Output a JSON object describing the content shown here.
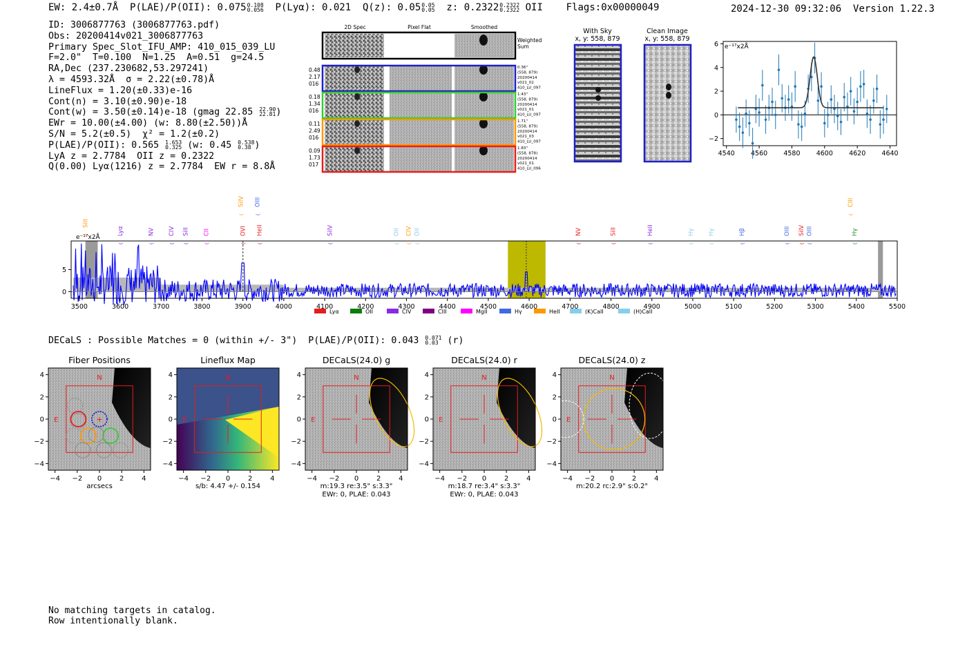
{
  "header": {
    "ew_text": "EW: 2.4±0.7Å",
    "plae_text": "P(LAE)/P(OII): 0.075",
    "plae_hi": "0.108",
    "plae_lo": "0.056",
    "plya_text": "P(Lyα): 0.021",
    "qz_text": "Q(z): 0.05",
    "qz_hi": "0.05",
    "qz_lo": "0.05",
    "z_text": "z: 0.2322",
    "z_hi": "0.2322",
    "z_lo": "0.2322",
    "z_line": "OII",
    "flags": "Flags:0x00000049",
    "datetime": "2024-12-30 09:32:06",
    "version": "Version 1.22.3"
  },
  "info": {
    "id": "ID: 3006877763 (3006877763.pdf)",
    "obs": "Obs: 20200414v021_3006877763",
    "primary": "Primary Spec_Slot_IFU_AMP: 410_015_039_LU",
    "fparams": "F=2.0\"  T=0.100  N=1.25  A=0.51  g=24.5",
    "radec": "RA,Dec (237.230682,53.297241)",
    "lambda": "λ = 4593.32Å  σ = 2.22(±0.78)Å",
    "lineflux": "LineFlux = 1.20(±0.33)e-16",
    "contn": "Cont(n) = 3.10(±0.90)e-18",
    "contw": "Cont(w) = 3.50(±0.14)e-18 (gmag 22.85",
    "gmag_hi": "22.90",
    "gmag_lo": "22.81",
    "contw_close": ")",
    "ewr": "EWr = 10.00(±4.00) (w: 8.80(±2.50))Å",
    "sn": "S/N = 5.2(±0.5)  χ² = 1.2(±0.2)",
    "plae": "P(LAE)/P(OII): 0.565",
    "plae_hi": "1.653",
    "plae_lo": "0.325",
    "plae_w": "(w: 0.45",
    "plae_w_hi": "0.538",
    "plae_w_lo": "0.38",
    "plae_w_close": ")",
    "lya_z": "LyA z = 2.7784  OII z = 0.2322",
    "q_line": "Q(0.00) Lyα(1216) z = 2.7784  EW r = 8.8Å"
  },
  "cutouts": {
    "col_titles": [
      "2D Spec",
      "Pixel Flat",
      "Smoothed"
    ],
    "weighted_label": [
      "Weighted",
      "Sum"
    ],
    "rows": [
      {
        "left": [
          "0.48",
          "2.17",
          "016"
        ],
        "right": [
          "0.36\"",
          "(558, 879)",
          "20200414",
          "v021_02",
          "410_LU_097"
        ],
        "color": "#1f1fc8"
      },
      {
        "left": [
          "0.18",
          "1.34",
          "016"
        ],
        "right": [
          "1.43\"",
          "(558, 879)",
          "20200414",
          "v021_01",
          "410_LU_097"
        ],
        "color": "#33cc33"
      },
      {
        "left": [
          "0.11",
          "2.49",
          "016"
        ],
        "right": [
          "1.71\"",
          "(558, 879)",
          "20200414",
          "v021_03",
          "410_LU_097"
        ],
        "color": "#ff9900"
      },
      {
        "left": [
          "0.09",
          "1.73",
          "017"
        ],
        "right": [
          "1.83\"",
          "(558, 878)",
          "20200414",
          "v021_01",
          "410_LU_096"
        ],
        "color": "#e81c1c"
      }
    ],
    "with_sky_title": "With Sky",
    "with_sky_xy": "x, y: 558, 879",
    "clean_title": "Clean Image",
    "clean_xy": "x, y: 558, 879"
  },
  "zoom_chart": {
    "type": "scatter",
    "unit_label": "e⁻¹⁷x2Å",
    "xlim": [
      4538,
      4644
    ],
    "ylim": [
      -2.6,
      6.2
    ],
    "xticks": [
      4540,
      4560,
      4580,
      4600,
      4620,
      4640
    ],
    "yticks": [
      -2,
      0,
      2,
      4,
      6
    ],
    "x": [
      4546,
      4548,
      4550,
      4552,
      4554,
      4556,
      4558,
      4560,
      4562,
      4564,
      4566,
      4568,
      4570,
      4572,
      4574,
      4576,
      4578,
      4580,
      4582,
      4584,
      4586,
      4588,
      4590,
      4592,
      4594,
      4596,
      4598,
      4600,
      4602,
      4604,
      4606,
      4608,
      4610,
      4612,
      4614,
      4616,
      4618,
      4620,
      4622,
      4624,
      4626,
      4628,
      4630,
      4632,
      4634,
      4636,
      4638
    ],
    "y": [
      -0.4,
      -1.0,
      -1.5,
      0.1,
      -0.7,
      -2.4,
      0.5,
      0.2,
      2.5,
      -0.4,
      0.6,
      1.1,
      0.0,
      3.8,
      1.4,
      0.6,
      1.3,
      0.7,
      2.4,
      -0.8,
      -1.0,
      0.1,
      2.2,
      3.2,
      4.8,
      1.2,
      2.4,
      -0.7,
      0.0,
      1.3,
      0.5,
      -0.1,
      -0.6,
      1.5,
      0.7,
      2.0,
      0.3,
      1.1,
      2.4,
      2.6,
      0.1,
      -0.4,
      1.2,
      2.2,
      -0.8,
      -0.4,
      0.5
    ],
    "err": [
      1.1,
      1.2,
      1.3,
      1.2,
      1.1,
      1.3,
      1.2,
      1.2,
      1.3,
      1.2,
      1.1,
      1.2,
      1.2,
      1.3,
      1.2,
      1.1,
      1.2,
      1.2,
      1.3,
      1.2,
      1.2,
      1.1,
      1.2,
      1.2,
      1.3,
      1.2,
      1.2,
      1.2,
      1.1,
      1.2,
      1.2,
      1.2,
      1.1,
      1.2,
      1.2,
      1.2,
      1.1,
      1.2,
      1.3,
      1.2,
      1.2,
      1.2,
      1.1,
      1.2,
      1.2,
      1.2,
      1.2
    ],
    "fit": {
      "center": 4593.32,
      "sigma": 2.22,
      "amp": 4.3,
      "continuum": 0.6,
      "xrange": [
        4547,
        4636
      ]
    }
  },
  "wide_chart": {
    "type": "line",
    "unit_label": "e⁻¹⁷x2Å",
    "xlim": [
      3480,
      5500
    ],
    "ylim": [
      -1.5,
      11.5
    ],
    "xticks": [
      3500,
      3600,
      3700,
      3800,
      3900,
      4000,
      4100,
      4200,
      4300,
      4400,
      4500,
      4600,
      4700,
      4800,
      4900,
      5000,
      5100,
      5200,
      5300,
      5400,
      5500
    ],
    "yticks": [
      0,
      5
    ],
    "highlight_band": [
      4548,
      4640
    ],
    "line_marker": 4593,
    "dashed_marker": 3900,
    "gray_bands": [
      [
        3515,
        3545
      ],
      [
        5453,
        5465
      ]
    ],
    "line_labels": [
      {
        "text": "SiII",
        "x": 3520,
        "color": "#ff9900",
        "row": 2
      },
      {
        "text": "Lyα",
        "x": 3605,
        "color": "#8a2be2",
        "row": 1
      },
      {
        "text": "NV",
        "x": 3680,
        "color": "#8a2be2",
        "row": 0
      },
      {
        "text": "CIV",
        "x": 3730,
        "color": "#8a2be2",
        "row": 0
      },
      {
        "text": "SiII",
        "x": 3765,
        "color": "#8a2be2",
        "row": 0
      },
      {
        "text": "CII",
        "x": 3815,
        "color": "#ff00ff",
        "row": 0
      },
      {
        "text": "SiIV",
        "x": 3900,
        "color": "#ff9900",
        "row": 3
      },
      {
        "text": "OIII",
        "x": 3940,
        "color": "#4169e1",
        "row": 3
      },
      {
        "text": "OVI",
        "x": 3905,
        "color": "#e81c1c",
        "row": 0
      },
      {
        "text": "HeII",
        "x": 3945,
        "color": "#e81c1c",
        "row": 0
      },
      {
        "text": "SiIV",
        "x": 4118,
        "color": "#8a2be2",
        "row": 0
      },
      {
        "text": "OII",
        "x": 4280,
        "color": "#87ceeb",
        "row": 0
      },
      {
        "text": "CIV",
        "x": 4310,
        "color": "#ff9900",
        "row": 0
      },
      {
        "text": "OII",
        "x": 4330,
        "color": "#87ceeb",
        "row": 0
      },
      {
        "text": "NV",
        "x": 4725,
        "color": "#e81c1c",
        "row": 0
      },
      {
        "text": "SiII",
        "x": 4810,
        "color": "#e81c1c",
        "row": 0
      },
      {
        "text": "HeII",
        "x": 4900,
        "color": "#8a2be2",
        "row": 0
      },
      {
        "text": "Hγ",
        "x": 5000,
        "color": "#87ceeb",
        "row": 1
      },
      {
        "text": "Hγ",
        "x": 5050,
        "color": "#87ceeb",
        "row": 1
      },
      {
        "text": "Hβ",
        "x": 5125,
        "color": "#4169e1",
        "row": 1
      },
      {
        "text": "OIII",
        "x": 5235,
        "color": "#4169e1",
        "row": 1
      },
      {
        "text": "SiIV",
        "x": 5270,
        "color": "#e81c1c",
        "row": 1
      },
      {
        "text": "OIII",
        "x": 5290,
        "color": "#4169e1",
        "row": 1
      },
      {
        "text": "CIII",
        "x": 5390,
        "color": "#ff9900",
        "row": 3
      },
      {
        "text": "Hγ",
        "x": 5400,
        "color": "#228b22",
        "row": 1
      }
    ],
    "legend": [
      {
        "label": "Lyα",
        "color": "#e81c1c"
      },
      {
        "label": "OII",
        "color": "#0a7d0a"
      },
      {
        "label": "CIV",
        "color": "#8a2be2"
      },
      {
        "label": "CIII",
        "color": "#800080"
      },
      {
        "label": "MgII",
        "color": "#ff00ff"
      },
      {
        "label": "Hγ",
        "color": "#4169e1"
      },
      {
        "label": "HeII",
        "color": "#ff9900"
      },
      {
        "label": "(K)CaII",
        "color": "#87ceeb"
      },
      {
        "label": "(H)CaII",
        "color": "#87ceeb"
      }
    ]
  },
  "decals": {
    "summary": "DECaLS : Possible Matches = 0 (within +/- 3\")  P(LAE)/P(OII): 0.043",
    "summary_hi": "0.071",
    "summary_lo": "0.03",
    "summary_band": "(r)",
    "panels": [
      {
        "title": "Fiber Positions",
        "lines": [
          "arcsecs"
        ]
      },
      {
        "title": "Lineflux Map",
        "lines": [
          "s/b: 4.47 +/- 0.154"
        ]
      },
      {
        "title": "DECaLS(24.0) g",
        "lines": [
          "m:19.3  re:3.5\"  s:3.3\"",
          "EWr: 0, PLAE: 0.043"
        ]
      },
      {
        "title": "DECaLS(24.0) r",
        "lines": [
          "m:18.7  re:3.4\"  s:3.3\"",
          "EWr: 0, PLAE: 0.043"
        ]
      },
      {
        "title": "DECaLS(24.0) z",
        "lines": [
          "m:20.2 rc:2.9\"  s:0.2\""
        ]
      }
    ],
    "axis_ticks": [
      -4,
      -2,
      0,
      2,
      4
    ],
    "north": "N",
    "east": "E"
  },
  "footer": {
    "line1": "No matching targets in catalog.",
    "line2": "Row intentionally blank."
  }
}
